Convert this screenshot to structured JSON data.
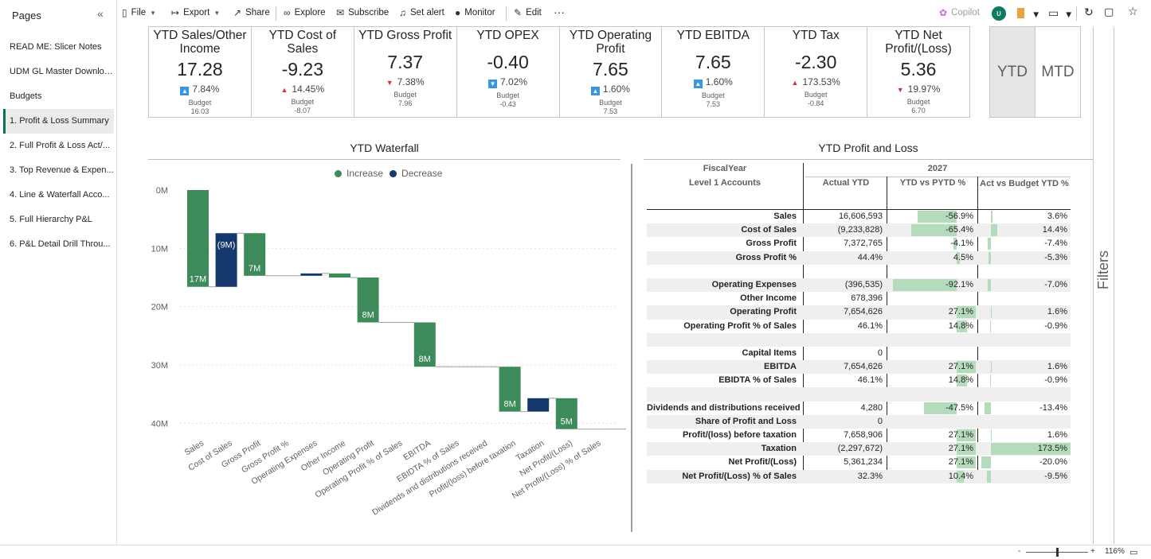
{
  "sidebar": {
    "title": "Pages",
    "collapse_icon": "double-chevron-left-icon",
    "pages": [
      {
        "label": "READ ME: Slicer Notes",
        "active": false
      },
      {
        "label": "UDM GL Master Download",
        "active": false
      },
      {
        "label": "Budgets",
        "active": false
      },
      {
        "label": "1. Profit & Loss Summary",
        "active": true
      },
      {
        "label": "2. Full Profit & Loss Act/...",
        "active": false
      },
      {
        "label": "3. Top Revenue & Expen...",
        "active": false
      },
      {
        "label": "4. Line & Waterfall Acco...",
        "active": false
      },
      {
        "label": "5. Full Hierarchy P&L",
        "active": false
      },
      {
        "label": "6. P&L Detail Drill Throu...",
        "active": false
      }
    ]
  },
  "toolbar": {
    "file": "File",
    "export": "Export",
    "share": "Share",
    "explore": "Explore",
    "subscribe": "Subscribe",
    "set_alert": "Set alert",
    "monitor": "Monitor",
    "edit": "Edit",
    "more": "···",
    "copilot": "Copilot",
    "avatar_initial": "ʋ"
  },
  "kpis": [
    {
      "title": "YTD Sales/Other Income",
      "value": "17.28",
      "delta": "7.84%",
      "direction": "up",
      "budget_label": "Budget",
      "budget": "16.03"
    },
    {
      "title": "YTD Cost of Sales",
      "value": "-9.23",
      "delta": "14.45%",
      "direction": "up-red",
      "budget_label": "Budget",
      "budget": "-8.07"
    },
    {
      "title": "YTD Gross Profit",
      "value": "7.37",
      "delta": "7.38%",
      "direction": "down-red",
      "budget_label": "Budget",
      "budget": "7.96"
    },
    {
      "title": "YTD OPEX",
      "value": "-0.40",
      "delta": "7.02%",
      "direction": "down",
      "budget_label": "Budget",
      "budget": "-0.43"
    },
    {
      "title": "YTD Operating Profit",
      "value": "7.65",
      "delta": "1.60%",
      "direction": "up",
      "budget_label": "Budget",
      "budget": "7.53"
    },
    {
      "title": "YTD EBITDA",
      "value": "7.65",
      "delta": "1.60%",
      "direction": "up",
      "budget_label": "Budget",
      "budget": "7.53"
    },
    {
      "title": "YTD Tax",
      "value": "-2.30",
      "delta": "173.53%",
      "direction": "up-red",
      "budget_label": "Budget",
      "budget": "-0.84"
    },
    {
      "title": "YTD Net Profit/(Loss)",
      "value": "5.36",
      "delta": "19.97%",
      "direction": "down-red",
      "budget_label": "Budget",
      "budget": "6.70"
    }
  ],
  "period_toggle": {
    "ytd": "YTD",
    "mtd": "MTD",
    "selected": "YTD"
  },
  "filters_pane": {
    "label": "Filters"
  },
  "chart_data": {
    "type": "waterfall",
    "title": "YTD Waterfall",
    "legend": [
      {
        "name": "Increase",
        "color": "#3d8a5b"
      },
      {
        "name": "Decrease",
        "color": "#14386b"
      }
    ],
    "y_ticks": [
      "0M",
      "10M",
      "20M",
      "30M",
      "40M"
    ],
    "ylim": [
      0,
      42
    ],
    "categories": [
      "Sales",
      "Cost of Sales",
      "Gross Profit",
      "Gross Profit %",
      "Operating Expenses",
      "Other Income",
      "Operating Profit",
      "Operating Profit % of Sales",
      "EBITDA",
      "EBIDTA % of Sales",
      "Dividends and distributions received",
      "Profit/(loss) before taxation",
      "Taxation",
      "Net Profit/(Loss)",
      "Net Profit/(Loss) % of Sales"
    ],
    "bars": [
      {
        "start": 0,
        "end": 16.6,
        "kind": "increase",
        "label": "17M"
      },
      {
        "start": 7.4,
        "end": 16.6,
        "kind": "decrease",
        "label": "(9M)"
      },
      {
        "start": 7.4,
        "end": 14.7,
        "kind": "increase",
        "label": "7M"
      },
      {
        "start": 14.7,
        "end": 14.7,
        "kind": "increase",
        "label": ""
      },
      {
        "start": 14.3,
        "end": 14.7,
        "kind": "decrease",
        "label": ""
      },
      {
        "start": 14.3,
        "end": 15.0,
        "kind": "increase",
        "label": ""
      },
      {
        "start": 15.0,
        "end": 22.7,
        "kind": "increase",
        "label": "8M"
      },
      {
        "start": 22.7,
        "end": 22.7,
        "kind": "increase",
        "label": ""
      },
      {
        "start": 22.7,
        "end": 30.3,
        "kind": "increase",
        "label": "8M"
      },
      {
        "start": 30.3,
        "end": 30.3,
        "kind": "increase",
        "label": ""
      },
      {
        "start": 30.3,
        "end": 30.3,
        "kind": "increase",
        "label": ""
      },
      {
        "start": 30.3,
        "end": 38.0,
        "kind": "increase",
        "label": "8M"
      },
      {
        "start": 35.7,
        "end": 38.0,
        "kind": "decrease",
        "label": ""
      },
      {
        "start": 35.7,
        "end": 41.0,
        "kind": "increase",
        "label": "5M"
      },
      {
        "start": 41.0,
        "end": 41.0,
        "kind": "increase",
        "label": ""
      }
    ]
  },
  "pl_table": {
    "title": "YTD Profit and Loss",
    "header_row1": {
      "col0": "FiscalYear",
      "year": "2027"
    },
    "header_row2": {
      "col0": "Level 1 Accounts",
      "col1": "Actual YTD",
      "col2": "YTD vs PYTD %",
      "col3": "Act vs Budget YTD %"
    },
    "rows": [
      {
        "label": "Sales",
        "actual": "16,606,593",
        "yvp": "-56.9%",
        "yvp_num": -56.9,
        "avb": "3.6%",
        "avb_num": 3.6
      },
      {
        "label": "Cost of Sales",
        "actual": "(9,233,828)",
        "yvp": "-65.4%",
        "yvp_num": -65.4,
        "avb": "14.4%",
        "avb_num": 14.4
      },
      {
        "label": "Gross Profit",
        "actual": "7,372,765",
        "yvp": "-4.1%",
        "yvp_num": -4.1,
        "avb": "-7.4%",
        "avb_num": -7.4
      },
      {
        "label": "Gross Profit %",
        "actual": "44.4%",
        "yvp": "4.5%",
        "yvp_num": 4.5,
        "avb": "-5.3%",
        "avb_num": -5.3
      },
      {
        "label": "",
        "actual": "",
        "yvp": "",
        "avb": ""
      },
      {
        "label": "Operating Expenses",
        "actual": "(396,535)",
        "yvp": "-92.1%",
        "yvp_num": -92.1,
        "avb": "-7.0%",
        "avb_num": -7.0
      },
      {
        "label": "Other Income",
        "actual": "678,396",
        "yvp": "",
        "avb": ""
      },
      {
        "label": "Operating Profit",
        "actual": "7,654,626",
        "yvp": "27.1%",
        "yvp_num": 27.1,
        "avb": "1.6%",
        "avb_num": 1.6
      },
      {
        "label": "Operating Profit % of Sales",
        "actual": "46.1%",
        "yvp": "14.8%",
        "yvp_num": 14.8,
        "avb": "-0.9%",
        "avb_num": -0.9
      },
      {
        "label": "",
        "actual": "",
        "yvp": "",
        "avb": ""
      },
      {
        "label": "Capital Items",
        "actual": "0",
        "yvp": "",
        "avb": ""
      },
      {
        "label": "EBITDA",
        "actual": "7,654,626",
        "yvp": "27.1%",
        "yvp_num": 27.1,
        "avb": "1.6%",
        "avb_num": 1.6
      },
      {
        "label": "EBIDTA % of Sales",
        "actual": "46.1%",
        "yvp": "14.8%",
        "yvp_num": 14.8,
        "avb": "-0.9%",
        "avb_num": -0.9
      },
      {
        "label": "",
        "actual": "",
        "yvp": "",
        "avb": ""
      },
      {
        "label": "Dividends and distributions received",
        "actual": "4,280",
        "yvp": "-47.5%",
        "yvp_num": -47.5,
        "avb": "-13.4%",
        "avb_num": -13.4
      },
      {
        "label": "Share of Profit and Loss",
        "actual": "0",
        "yvp": "",
        "avb": ""
      },
      {
        "label": "Profit/(loss) before taxation",
        "actual": "7,658,906",
        "yvp": "27.1%",
        "yvp_num": 27.1,
        "avb": "1.6%",
        "avb_num": 1.6
      },
      {
        "label": "Taxation",
        "actual": "(2,297,672)",
        "yvp": "27.1%",
        "yvp_num": 27.1,
        "avb": "173.5%",
        "avb_num": 173.5
      },
      {
        "label": "Net Profit/(Loss)",
        "actual": "5,361,234",
        "yvp": "27.1%",
        "yvp_num": 27.1,
        "avb": "-20.0%",
        "avb_num": -20.0
      },
      {
        "label": "Net Profit/(Loss) % of Sales",
        "actual": "32.3%",
        "yvp": "10.4%",
        "yvp_num": 10.4,
        "avb": "-9.5%",
        "avb_num": -9.5
      }
    ]
  },
  "status_bar": {
    "zoom_out": "-",
    "zoom_in": "+",
    "zoom_level": "116%"
  }
}
